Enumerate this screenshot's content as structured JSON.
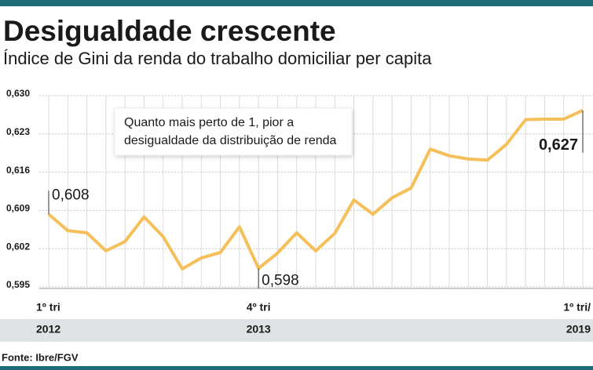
{
  "chart_data": {
    "type": "line",
    "title": "Desigualdade crescente",
    "subtitle": "Índice de Gini da renda do trabalho domiciliar per capita",
    "annotation": [
      "Quanto mais perto de 1, pior a",
      "desigualdade da distribuição de renda"
    ],
    "source": "Fonte: Ibre/FGV",
    "categories": [
      "1º tri",
      null,
      null,
      null,
      null,
      null,
      null,
      null,
      null,
      null,
      null,
      "4º tri",
      null,
      null,
      null,
      null,
      null,
      null,
      null,
      null,
      null,
      null,
      null,
      null,
      null,
      null,
      null,
      null,
      "1º tri/"
    ],
    "years": [
      "2012",
      null,
      null,
      null,
      null,
      null,
      null,
      null,
      null,
      null,
      null,
      "2013",
      null,
      null,
      null,
      null,
      null,
      null,
      null,
      null,
      null,
      null,
      null,
      null,
      null,
      null,
      null,
      null,
      "2019"
    ],
    "values": [
      0.6083,
      0.6053,
      0.6049,
      0.6016,
      0.6033,
      0.6078,
      0.6042,
      0.5983,
      0.6003,
      0.6013,
      0.606,
      0.5984,
      0.6012,
      0.6049,
      0.6016,
      0.6048,
      0.6109,
      0.6083,
      0.6113,
      0.6131,
      0.6202,
      0.619,
      0.6184,
      0.6182,
      0.6211,
      0.6256,
      0.6257,
      0.6257,
      0.6273
    ],
    "value_labels": [
      "0,608",
      null,
      null,
      null,
      null,
      null,
      null,
      null,
      null,
      null,
      null,
      "0,598",
      null,
      null,
      null,
      null,
      null,
      null,
      null,
      null,
      null,
      null,
      null,
      null,
      null,
      null,
      null,
      null,
      "0,627"
    ],
    "color": "#f5bf5a",
    "ylim": [
      0.595,
      0.63
    ],
    "yticks": [
      {
        "value": 0.595,
        "label": "0,595"
      },
      {
        "value": 0.602,
        "label": "0,602"
      },
      {
        "value": 0.609,
        "label": "0,609"
      },
      {
        "value": 0.616,
        "label": "0,616"
      },
      {
        "value": 0.623,
        "label": "0,623"
      },
      {
        "value": 0.63,
        "label": "0,630"
      }
    ],
    "grid": true
  }
}
